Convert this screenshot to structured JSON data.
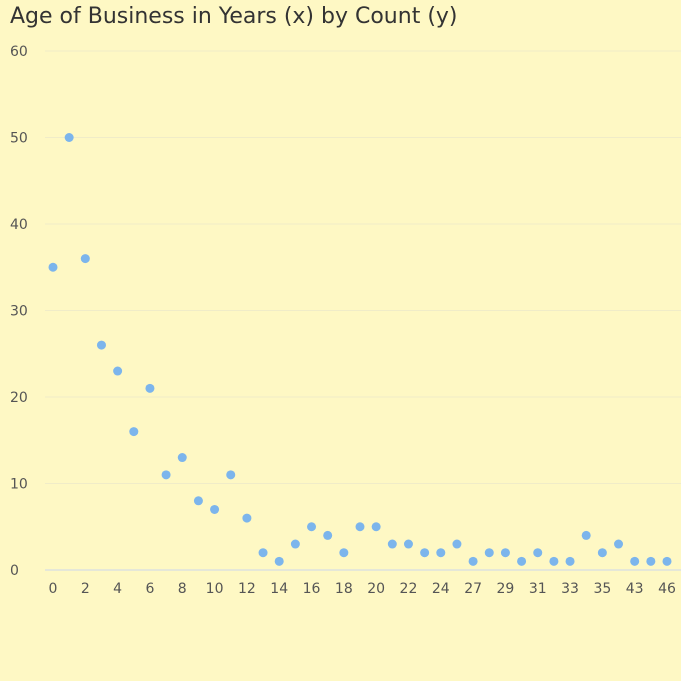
{
  "chart_data": {
    "type": "scatter",
    "title": "Age of Business in Years (x) by Count (y)",
    "xlabel": "",
    "ylabel": "",
    "ylim": [
      0,
      60
    ],
    "y_ticks": [
      "0",
      "10",
      "20",
      "30",
      "40",
      "50",
      "60"
    ],
    "x_tick_labels": [
      "0",
      "2",
      "4",
      "6",
      "8",
      "10",
      "12",
      "14",
      "16",
      "18",
      "20",
      "22",
      "24",
      "27",
      "29",
      "31",
      "33",
      "35",
      "43",
      "46"
    ],
    "x_categories": [
      "0",
      "1",
      "2",
      "3",
      "4",
      "5",
      "6",
      "7",
      "8",
      "9",
      "10",
      "11",
      "12",
      "13",
      "14",
      "15",
      "16",
      "17",
      "18",
      "19",
      "20",
      "21",
      "22",
      "23",
      "24",
      "25",
      "27",
      "28",
      "29",
      "30",
      "31",
      "32",
      "33",
      "34",
      "35",
      "36",
      "43",
      "44",
      "46"
    ],
    "values": [
      35,
      50,
      36,
      26,
      23,
      16,
      21,
      11,
      13,
      8,
      7,
      11,
      6,
      2,
      1,
      3,
      5,
      4,
      2,
      5,
      5,
      3,
      3,
      2,
      2,
      3,
      1,
      2,
      2,
      1,
      2,
      1,
      1,
      4,
      2,
      3,
      1,
      1,
      1
    ],
    "grid": true,
    "point_color": "#7cb5ec",
    "grid_color": "#f0ecc8",
    "axis_color": "#ccd6eb"
  }
}
